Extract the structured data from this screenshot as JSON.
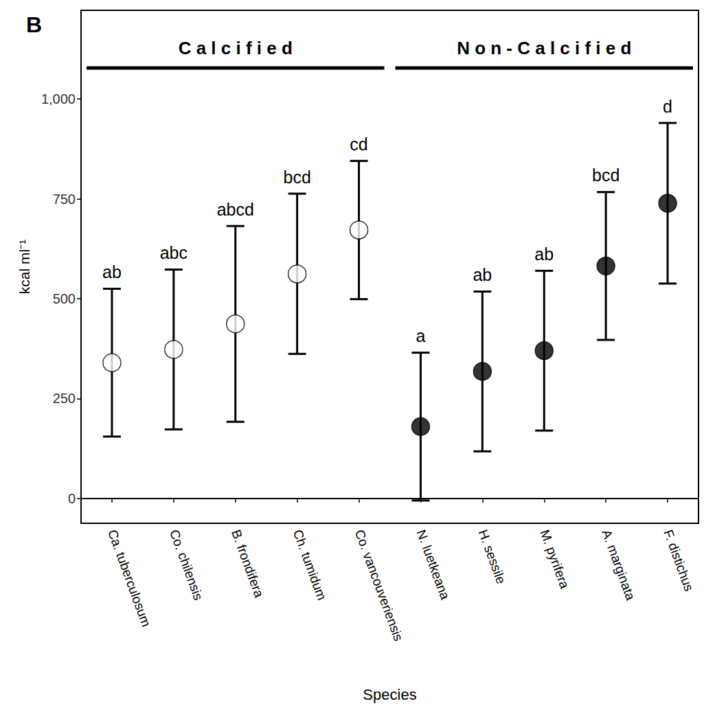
{
  "chart_data": {
    "type": "scatter",
    "panel": "B",
    "x_label": "Species",
    "y_label": "kcal ml⁻¹",
    "categories": [
      "Ca. tuberculosum",
      "Co. chilensis",
      "B. frondifera",
      "Ch. tumidum",
      "Co. vancouveriensis",
      "N. luetkeana",
      "H. sessile",
      "M. pyrifera",
      "A. marginata",
      "F. distichus"
    ],
    "values": [
      340,
      373,
      437,
      562,
      672,
      180,
      318,
      370,
      582,
      739
    ],
    "error_low": [
      155,
      173,
      192,
      362,
      499,
      -5,
      118,
      170,
      397,
      538
    ],
    "error_high": [
      525,
      573,
      682,
      763,
      845,
      365,
      518,
      570,
      767,
      940
    ],
    "letters": [
      "ab",
      "abc",
      "abcd",
      "bcd",
      "cd",
      "a",
      "ab",
      "ab",
      "bcd",
      "d"
    ],
    "groups": [
      {
        "label": "Calcified",
        "marker": "open circle",
        "members": [
          "Ca. tuberculosum",
          "Co. chilensis",
          "B. frondifera",
          "Ch. tumidum",
          "Co. vancouveriensis"
        ]
      },
      {
        "label": "Non-Calcified",
        "marker": "filled circle",
        "members": [
          "N. luetkeana",
          "H. sessile",
          "M. pyrifera",
          "A. marginata",
          "F. distichus"
        ]
      }
    ],
    "color": "#000000",
    "ylim": [
      -62,
      1222
    ],
    "yticks": [
      0,
      250,
      500,
      750,
      1000
    ],
    "grid": false
  }
}
